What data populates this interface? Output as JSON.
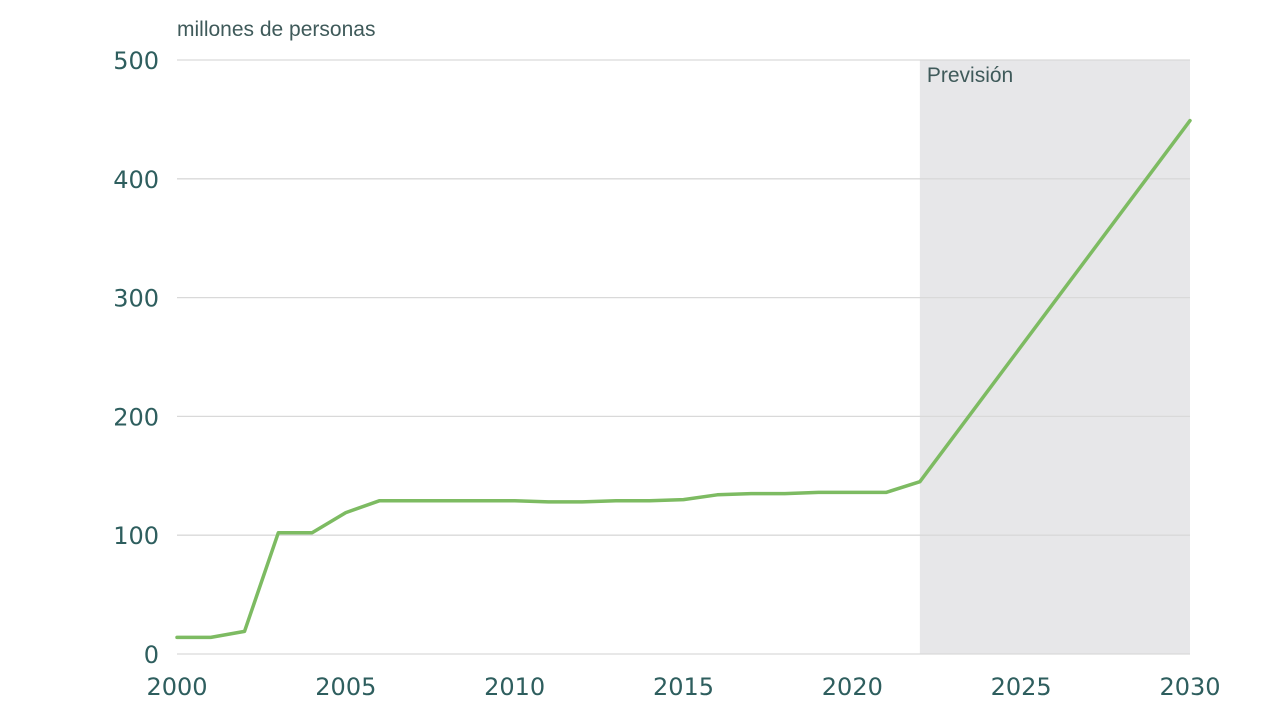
{
  "chart_data": {
    "type": "line",
    "ylabel": "millones de personas",
    "forecast_label": "Previsión",
    "forecast_start": 2022,
    "xlim": [
      2000,
      2030
    ],
    "ylim": [
      0,
      500
    ],
    "x_ticks": [
      "2000",
      "2005",
      "2010",
      "2015",
      "2020",
      "2025",
      "2030"
    ],
    "y_ticks": [
      "0",
      "100",
      "200",
      "300",
      "400",
      "500"
    ],
    "grid": true,
    "series": [
      {
        "color": "#7dbb62",
        "points": [
          {
            "x": 2000,
            "y": 14
          },
          {
            "x": 2001,
            "y": 14
          },
          {
            "x": 2002,
            "y": 19
          },
          {
            "x": 2003,
            "y": 102
          },
          {
            "x": 2004,
            "y": 102
          },
          {
            "x": 2005,
            "y": 119
          },
          {
            "x": 2006,
            "y": 129
          },
          {
            "x": 2007,
            "y": 129
          },
          {
            "x": 2008,
            "y": 129
          },
          {
            "x": 2009,
            "y": 129
          },
          {
            "x": 2010,
            "y": 129
          },
          {
            "x": 2011,
            "y": 128
          },
          {
            "x": 2012,
            "y": 128
          },
          {
            "x": 2013,
            "y": 129
          },
          {
            "x": 2014,
            "y": 129
          },
          {
            "x": 2015,
            "y": 130
          },
          {
            "x": 2016,
            "y": 134
          },
          {
            "x": 2017,
            "y": 135
          },
          {
            "x": 2018,
            "y": 135
          },
          {
            "x": 2019,
            "y": 136
          },
          {
            "x": 2020,
            "y": 136
          },
          {
            "x": 2021,
            "y": 136
          },
          {
            "x": 2022,
            "y": 145
          },
          {
            "x": 2030,
            "y": 449
          }
        ]
      }
    ]
  }
}
